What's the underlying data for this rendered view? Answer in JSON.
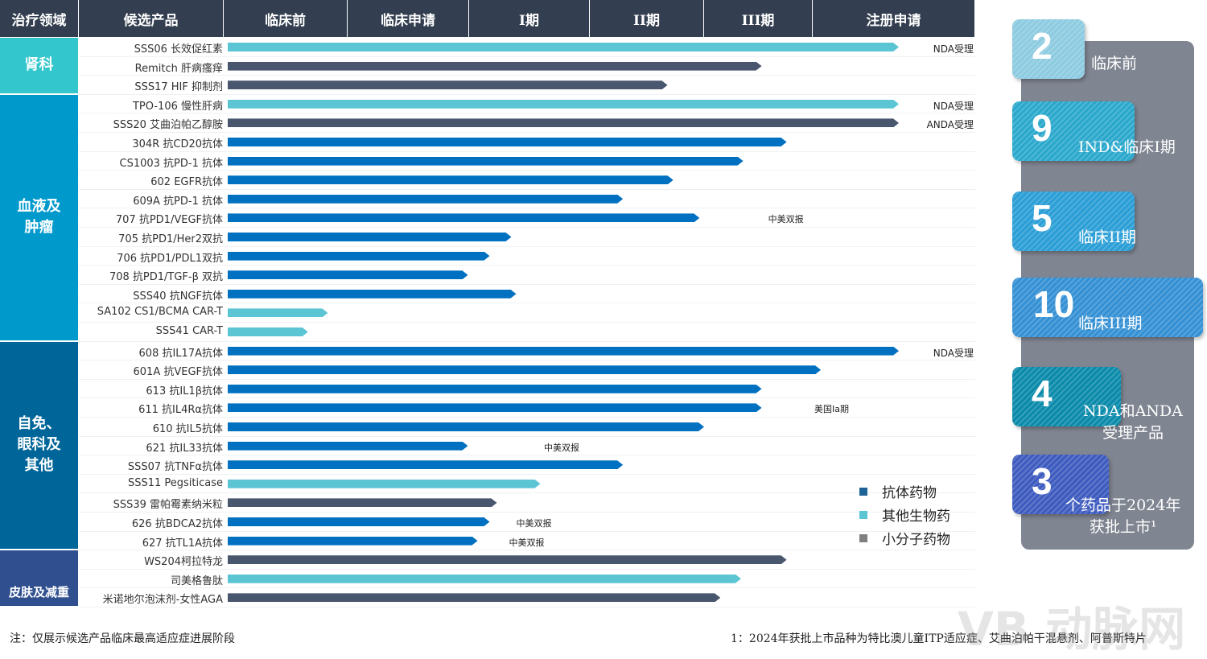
{
  "header": [
    "治疗领域",
    "候选产品",
    "临床前",
    "临床申请",
    "I期",
    "II期",
    "III期",
    "注册申请"
  ],
  "colors": {
    "header": "#333f50",
    "antibody": "#0070c0",
    "other_bio": "#5bc5d3",
    "small_molecule": "#48566e"
  },
  "groups": [
    {
      "label": "肾科",
      "rows": 3,
      "color": "#33c6cc"
    },
    {
      "label": "血液及\n肿瘤",
      "rows": 13,
      "color": "#0099cc"
    },
    {
      "label": "自免、\n眼科及\n其他",
      "rows": 11,
      "color": "#006699"
    },
    {
      "label": "皮肤及减重",
      "rows": 3,
      "color": "#2f4f8f"
    }
  ],
  "chart_data": {
    "type": "bar",
    "orientation": "horizontal",
    "x_categories": [
      "临床前",
      "临床申请",
      "I期",
      "II期",
      "III期",
      "注册申请"
    ],
    "xlim": [
      0,
      6
    ],
    "note": "bar value = progress through stage columns (0–6)",
    "rows": [
      {
        "name": "SSS06 长效促红素",
        "type": "other_bio",
        "value": 5.53,
        "annotation": "NDA受理"
      },
      {
        "name": "Remitch 肝病瘙痒",
        "type": "small_molecule",
        "value": 4.53
      },
      {
        "name": "SSS17 HIF 抑制剂",
        "type": "small_molecule",
        "value": 3.68
      },
      {
        "name": "TPO-106 慢性肝病",
        "type": "other_bio",
        "value": 5.53,
        "annotation": "NDA受理"
      },
      {
        "name": "SSS20 艾曲泊帕乙醇胺",
        "type": "small_molecule",
        "value": 5.53,
        "annotation": "ANDA受理"
      },
      {
        "name": "304R 抗CD20抗体",
        "type": "antibody",
        "value": 4.76
      },
      {
        "name": "CS1003 抗PD-1 抗体",
        "type": "antibody",
        "value": 4.36
      },
      {
        "name": "602 EGFR抗体",
        "type": "antibody",
        "value": 3.73
      },
      {
        "name": "609A 抗PD-1 抗体",
        "type": "antibody",
        "value": 3.29
      },
      {
        "name": "707 抗PD1/VEGF抗体",
        "type": "antibody",
        "value": 3.96,
        "annotation": "中美双报",
        "annotation_at": 4.59
      },
      {
        "name": "705 抗PD1/Her2双抗",
        "type": "antibody",
        "value": 2.35
      },
      {
        "name": "706 抗PD1/PDL1双抗",
        "type": "antibody",
        "value": 2.17
      },
      {
        "name": "708 抗PD1/TGF-β 双抗",
        "type": "antibody",
        "value": 1.99
      },
      {
        "name": "SSS40 抗NGF抗体",
        "type": "antibody",
        "value": 2.39
      },
      {
        "name": "SA102 CS1/BCMA CAR-T",
        "type": "other_bio",
        "value": 0.84
      },
      {
        "name": "SSS41 CAR-T",
        "type": "other_bio",
        "value": 0.68
      },
      {
        "name": "608 抗IL17A抗体",
        "type": "antibody",
        "value": 5.53,
        "annotation": "NDA受理"
      },
      {
        "name": "601A 抗VEGF抗体",
        "type": "antibody",
        "value": 5.05
      },
      {
        "name": "613 抗IL1β抗体",
        "type": "antibody",
        "value": 4.53
      },
      {
        "name": "611 抗IL4Rα抗体",
        "type": "antibody",
        "value": 4.53,
        "annotation": "美国Ia期",
        "annotation_at": 5.01
      },
      {
        "name": "610 抗IL5抗体",
        "type": "antibody",
        "value": 4.0
      },
      {
        "name": "621 抗IL33抗体",
        "type": "antibody",
        "value": 1.99,
        "annotation": "中美双报",
        "annotation_at": 2.62
      },
      {
        "name": "SSS07 抗TNFα抗体",
        "type": "antibody",
        "value": 3.29
      },
      {
        "name": "SSS11  Pegsiticase",
        "type": "other_bio",
        "value": 2.59
      },
      {
        "name": "SSS39 雷帕霉素纳米粒",
        "type": "small_molecule",
        "value": 2.23
      },
      {
        "name": "626 抗BDCA2抗体",
        "type": "antibody",
        "value": 2.17,
        "annotation": "中美双报",
        "annotation_at": 2.39
      },
      {
        "name": "627 抗TL1A抗体",
        "type": "antibody",
        "value": 2.07,
        "annotation": "中美双报",
        "annotation_at": 2.33
      },
      {
        "name": "WS204柯拉特龙",
        "type": "small_molecule",
        "value": 4.76
      },
      {
        "name": "司美格鲁肽",
        "type": "other_bio",
        "value": 4.34
      },
      {
        "name": "米诺地尔泡沫剂-女性AGA",
        "type": "small_molecule",
        "value": 4.15
      }
    ],
    "legend": [
      {
        "label": "抗体药物",
        "type": "antibody",
        "color": "#1f6496"
      },
      {
        "label": "其他生物药",
        "type": "other_bio",
        "color": "#5bc5d3"
      },
      {
        "label": "小分子药物",
        "type": "small_molecule",
        "color": "#808080"
      }
    ],
    "legend_position": "bottom-right"
  },
  "summary": [
    {
      "num": "2",
      "label": "临床前",
      "color": "#8ccbe0"
    },
    {
      "num": "9",
      "label": "IND&临床I期",
      "color": "#2aa8cc"
    },
    {
      "num": "5",
      "label": "临床II期",
      "color": "#2a9ed6"
    },
    {
      "num": "10",
      "label": "临床III期",
      "color": "#3490d4"
    },
    {
      "num": "4",
      "label": "NDA和ANDA\n受理产品",
      "color": "#0a8aaa"
    },
    {
      "num": "3",
      "label": "个药品于2024年\n获批上市¹",
      "color": "#3d5bbf"
    }
  ],
  "footnotes": {
    "left": "注：仅展示候选产品临床最高适应症进展阶段",
    "right": "1：2024年获批上市品种为特比澳儿童ITP适应症、艾曲泊帕干混悬剂、阿普斯特片"
  },
  "watermark": "动脉网"
}
